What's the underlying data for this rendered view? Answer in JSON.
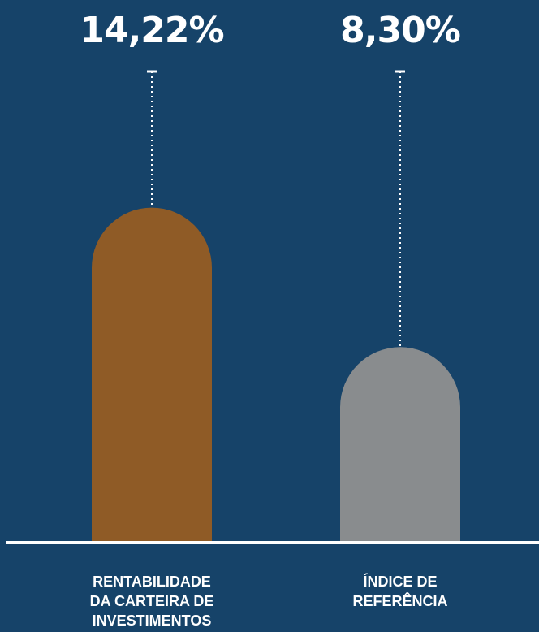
{
  "chart_data": {
    "type": "bar",
    "categories": [
      "RENTABILIDADE DA CARTEIRA DE INVESTIMENTOS",
      "ÍNDICE DE REFERÊNCIA"
    ],
    "category_lines": [
      [
        "RENTABILIDADE",
        "DA CARTEIRA DE",
        "INVESTIMENTOS"
      ],
      [
        "ÍNDICE DE",
        "REFERÊNCIA"
      ]
    ],
    "values": [
      14.22,
      8.3
    ],
    "value_labels": [
      "14,22%",
      "8,30%"
    ],
    "colors": [
      "#8f5b26",
      "#898c8e"
    ],
    "background": "#164369",
    "baseline_color": "#ffffff",
    "title": "",
    "xlabel": "",
    "ylabel": "",
    "grid": false
  }
}
